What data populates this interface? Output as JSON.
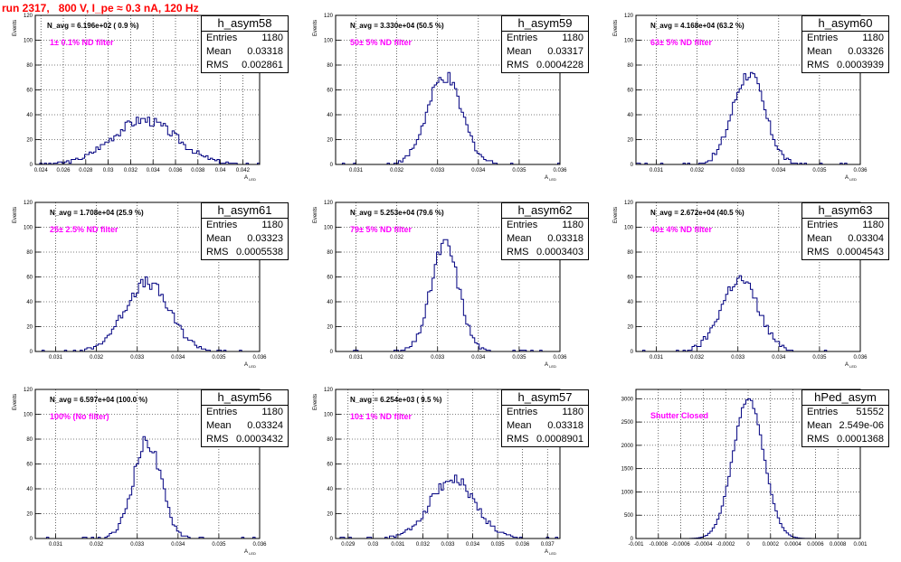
{
  "title": "run 2317,   800 V, I_pe ≈ 0.3 nA, 120 Hz",
  "chart_data": [
    {
      "type": "bar",
      "name": "h_asym58",
      "n_avg": "N_avg = 6.196e+02 ( 0.9 %)",
      "filter": "1± 0.1% ND filter",
      "entries": "1180",
      "mean": "0.03318",
      "rms": "0.002861",
      "xlim": [
        0.0235,
        0.0435
      ],
      "ylim": [
        0,
        120
      ],
      "xticks": [
        0.024,
        0.026,
        0.028,
        0.03,
        0.032,
        0.034,
        0.036,
        0.038,
        0.04,
        0.042
      ],
      "xticklabels": [
        "0.024",
        "0.026",
        "0.028",
        "0.03",
        "0.032",
        "0.034",
        "0.036",
        "0.038",
        "0.04",
        "0.042"
      ],
      "yticks": [
        0,
        20,
        40,
        60,
        80,
        100,
        120
      ],
      "xlabel": "A",
      "xlabel_sub": "LED",
      "ylabel": "Events",
      "mu": 0.03318,
      "sigma": 0.002861,
      "peak": 36
    },
    {
      "type": "bar",
      "name": "h_asym59",
      "n_avg": "N_avg = 3.330e+04 (50.5 %)",
      "filter": "50± 5% ND filter",
      "entries": "1180",
      "mean": "0.03317",
      "rms": "0.0004228",
      "xlim": [
        0.0305,
        0.036
      ],
      "ylim": [
        0,
        120
      ],
      "xticks": [
        0.031,
        0.032,
        0.033,
        0.034,
        0.035,
        0.036
      ],
      "xticklabels": [
        "0.031",
        "0.032",
        "0.033",
        "0.034",
        "0.035",
        "0.036"
      ],
      "yticks": [
        0,
        20,
        40,
        60,
        80,
        100,
        120
      ],
      "xlabel": "A",
      "xlabel_sub": "LED",
      "ylabel": "Events",
      "mu": 0.03317,
      "sigma": 0.0004228,
      "peak": 70
    },
    {
      "type": "bar",
      "name": "h_asym60",
      "n_avg": "N_avg = 4.168e+04 (63.2 %)",
      "filter": "63± 5% ND filter",
      "entries": "1180",
      "mean": "0.03326",
      "rms": "0.0003939",
      "xlim": [
        0.0305,
        0.036
      ],
      "ylim": [
        0,
        120
      ],
      "xticks": [
        0.031,
        0.032,
        0.033,
        0.034,
        0.035,
        0.036
      ],
      "xticklabels": [
        "0.031",
        "0.032",
        "0.033",
        "0.034",
        "0.035",
        "0.036"
      ],
      "yticks": [
        0,
        20,
        40,
        60,
        80,
        100,
        120
      ],
      "xlabel": "A",
      "xlabel_sub": "LED",
      "ylabel": "Events",
      "mu": 0.03326,
      "sigma": 0.0003939,
      "peak": 73
    },
    {
      "type": "bar",
      "name": "h_asym61",
      "n_avg": "N_avg = 1.708e+04 (25.9 %)",
      "filter": "25± 2.5% ND filter",
      "entries": "1180",
      "mean": "0.03323",
      "rms": "0.0005538",
      "xlim": [
        0.0305,
        0.036
      ],
      "ylim": [
        0,
        120
      ],
      "xticks": [
        0.031,
        0.032,
        0.033,
        0.034,
        0.035,
        0.036
      ],
      "xticklabels": [
        "0.031",
        "0.032",
        "0.033",
        "0.034",
        "0.035",
        "0.036"
      ],
      "yticks": [
        0,
        20,
        40,
        60,
        80,
        100,
        120
      ],
      "xlabel": "A",
      "xlabel_sub": "LED",
      "ylabel": "Events",
      "mu": 0.03323,
      "sigma": 0.0005538,
      "peak": 55
    },
    {
      "type": "bar",
      "name": "h_asym62",
      "n_avg": "N_avg = 5.253e+04 (79.6 %)",
      "filter": "79± 5% ND filter",
      "entries": "1180",
      "mean": "0.03318",
      "rms": "0.0003403",
      "xlim": [
        0.0305,
        0.036
      ],
      "ylim": [
        0,
        120
      ],
      "xticks": [
        0.031,
        0.032,
        0.033,
        0.034,
        0.035,
        0.036
      ],
      "xticklabels": [
        "0.031",
        "0.032",
        "0.033",
        "0.034",
        "0.035",
        "0.036"
      ],
      "yticks": [
        0,
        20,
        40,
        60,
        80,
        100,
        120
      ],
      "xlabel": "A",
      "xlabel_sub": "LED",
      "ylabel": "Events",
      "mu": 0.03318,
      "sigma": 0.0003403,
      "peak": 86
    },
    {
      "type": "bar",
      "name": "h_asym63",
      "n_avg": "N_avg = 2.672e+04 (40.5 %)",
      "filter": "40± 4% ND filter",
      "entries": "1180",
      "mean": "0.03304",
      "rms": "0.0004543",
      "xlim": [
        0.0305,
        0.036
      ],
      "ylim": [
        0,
        120
      ],
      "xticks": [
        0.031,
        0.032,
        0.033,
        0.034,
        0.035,
        0.036
      ],
      "xticklabels": [
        "0.031",
        "0.032",
        "0.033",
        "0.034",
        "0.035",
        "0.036"
      ],
      "yticks": [
        0,
        20,
        40,
        60,
        80,
        100,
        120
      ],
      "xlabel": "A",
      "xlabel_sub": "LED",
      "ylabel": "Events",
      "mu": 0.03304,
      "sigma": 0.0004543,
      "peak": 58
    },
    {
      "type": "bar",
      "name": "h_asym56",
      "n_avg": "N_avg = 6.597e+04 (100.0 %)",
      "filter": "100% (No filter)",
      "entries": "1180",
      "mean": "0.03324",
      "rms": "0.0003432",
      "xlim": [
        0.0305,
        0.036
      ],
      "ylim": [
        0,
        120
      ],
      "xticks": [
        0.031,
        0.032,
        0.033,
        0.034,
        0.035,
        0.036
      ],
      "xticklabels": [
        "0.031",
        "0.032",
        "0.033",
        "0.034",
        "0.035",
        "0.036"
      ],
      "yticks": [
        0,
        20,
        40,
        60,
        80,
        100,
        120
      ],
      "xlabel": "A",
      "xlabel_sub": "LED",
      "ylabel": "Events",
      "mu": 0.03324,
      "sigma": 0.0003432,
      "peak": 78
    },
    {
      "type": "bar",
      "name": "h_asym57",
      "n_avg": "N_avg = 6.254e+03 ( 9.5 %)",
      "filter": "10± 1% ND filter",
      "entries": "1180",
      "mean": "0.03318",
      "rms": "0.0008901",
      "xlim": [
        0.0285,
        0.0375
      ],
      "ylim": [
        0,
        120
      ],
      "xticks": [
        0.029,
        0.03,
        0.031,
        0.032,
        0.033,
        0.034,
        0.035,
        0.036,
        0.037
      ],
      "xticklabels": [
        "0.029",
        "0.03",
        "0.031",
        "0.032",
        "0.033",
        "0.034",
        "0.035",
        "0.036",
        "0.037"
      ],
      "yticks": [
        0,
        20,
        40,
        60,
        80,
        100,
        120
      ],
      "xlabel": "A",
      "xlabel_sub": "LED",
      "ylabel": "Events",
      "mu": 0.03318,
      "sigma": 0.0008901,
      "peak": 48
    },
    {
      "type": "bar",
      "name": "hPed_asym",
      "n_avg": "",
      "filter": "Shutter Closed",
      "entries": "51552",
      "mean": "2.549e-06",
      "rms": "0.0001368",
      "xlim": [
        -0.001,
        0.001
      ],
      "ylim": [
        0,
        3200
      ],
      "xticks": [
        -0.001,
        -0.0008,
        -0.0006,
        -0.0004,
        -0.0002,
        0,
        0.0002,
        0.0004,
        0.0006,
        0.0008,
        0.001
      ],
      "xticklabels": [
        "-0.001",
        "-0.0008",
        "-0.0006",
        "-0.0004",
        "-0.0002",
        "0",
        "0.0002",
        "0.0004",
        "0.0006",
        "0.0008",
        "0.001"
      ],
      "yticks": [
        0,
        500,
        1000,
        1500,
        2000,
        2500,
        3000
      ],
      "xlabel": "",
      "xlabel_sub": "",
      "ylabel": "",
      "mu": 2.5e-06,
      "sigma": 0.0001368,
      "peak": 3000
    }
  ]
}
